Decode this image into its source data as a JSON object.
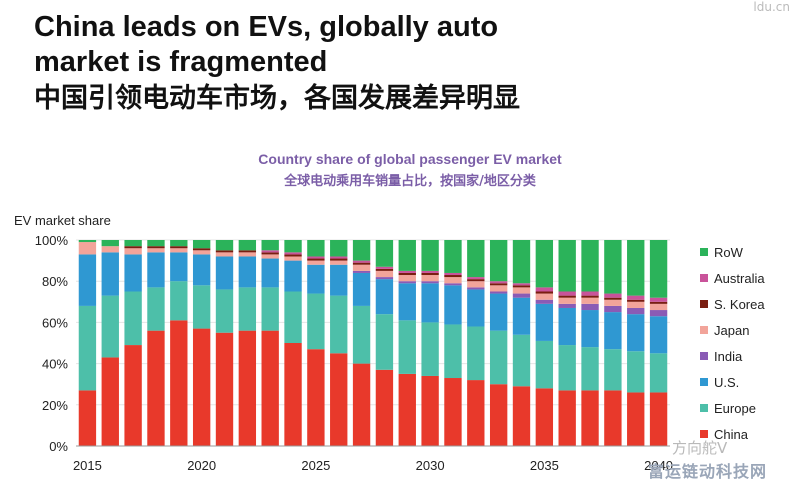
{
  "title_en": "China leads on EVs, globally auto market is fragmented",
  "title_zh": "中国引领电动车市场，各国发展差异明显",
  "watermark_top": "ldu.cn",
  "watermark_logo": "方向舵V",
  "watermark_bottom": "富运链动科技网",
  "chart_data": {
    "type": "bar",
    "stacked": true,
    "title": "Country share of global passenger EV market",
    "subtitle": "全球电动乘用车销量占比，按国家/地区分类",
    "ylabel": "EV market share",
    "xlabel": "",
    "ylim": [
      0,
      100
    ],
    "yticks": [
      "0%",
      "20%",
      "40%",
      "60%",
      "80%",
      "100%"
    ],
    "xticks": [
      "2015",
      "2020",
      "2025",
      "2030",
      "2035",
      "2040"
    ],
    "legend_position": "right",
    "categories": [
      "2015",
      "2016",
      "2017",
      "2018",
      "2019",
      "2020",
      "2021",
      "2022",
      "2023",
      "2024",
      "2025",
      "2026",
      "2027",
      "2028",
      "2029",
      "2030",
      "2031",
      "2032",
      "2033",
      "2034",
      "2035",
      "2036",
      "2037",
      "2038",
      "2039",
      "2040"
    ],
    "series": [
      {
        "name": "China",
        "color": "#e8392b",
        "values": [
          27,
          43,
          49,
          56,
          61,
          57,
          55,
          56,
          56,
          50,
          47,
          45,
          40,
          37,
          35,
          34,
          33,
          32,
          30,
          29,
          28,
          27,
          27,
          27,
          26,
          26
        ]
      },
      {
        "name": "Europe",
        "color": "#4dbfa9",
        "values": [
          41,
          30,
          26,
          21,
          19,
          21,
          21,
          21,
          21,
          25,
          27,
          28,
          28,
          27,
          26,
          26,
          26,
          26,
          26,
          25,
          23,
          22,
          21,
          20,
          20,
          19
        ]
      },
      {
        "name": "U.S.",
        "color": "#2f98d2",
        "values": [
          25,
          21,
          18,
          17,
          14,
          15,
          16,
          15,
          14,
          15,
          14,
          15,
          16,
          17,
          18,
          19,
          19,
          18,
          18,
          18,
          18,
          18,
          18,
          18,
          18,
          18
        ]
      },
      {
        "name": "India",
        "color": "#8a5bb5",
        "values": [
          0,
          0,
          0,
          0,
          0,
          0,
          0,
          0,
          0,
          0,
          0,
          0,
          1,
          1,
          1,
          1,
          1,
          1,
          1,
          2,
          2,
          2,
          3,
          3,
          3,
          3
        ]
      },
      {
        "name": "Japan",
        "color": "#f2a49a",
        "values": [
          6,
          3,
          3,
          2,
          2,
          2,
          2,
          2,
          2,
          2,
          2,
          2,
          3,
          3,
          3,
          3,
          3,
          3,
          3,
          3,
          3,
          3,
          3,
          3,
          3,
          3
        ]
      },
      {
        "name": "S. Korea",
        "color": "#7a1e12",
        "values": [
          0,
          0,
          1,
          1,
          1,
          1,
          1,
          1,
          1,
          1,
          1,
          1,
          1,
          1,
          1,
          1,
          1,
          1,
          1,
          1,
          1,
          1,
          1,
          1,
          1,
          1
        ]
      },
      {
        "name": "Australia",
        "color": "#c9539a",
        "values": [
          0,
          0,
          0,
          0,
          0,
          0,
          0,
          0,
          1,
          1,
          1,
          1,
          1,
          1,
          1,
          1,
          1,
          1,
          1,
          1,
          2,
          2,
          2,
          2,
          2,
          2
        ]
      },
      {
        "name": "RoW",
        "color": "#2bb35a",
        "values": [
          1,
          3,
          3,
          3,
          3,
          4,
          5,
          5,
          5,
          6,
          8,
          8,
          10,
          13,
          15,
          15,
          16,
          18,
          20,
          21,
          23,
          25,
          25,
          26,
          27,
          28
        ]
      }
    ]
  }
}
